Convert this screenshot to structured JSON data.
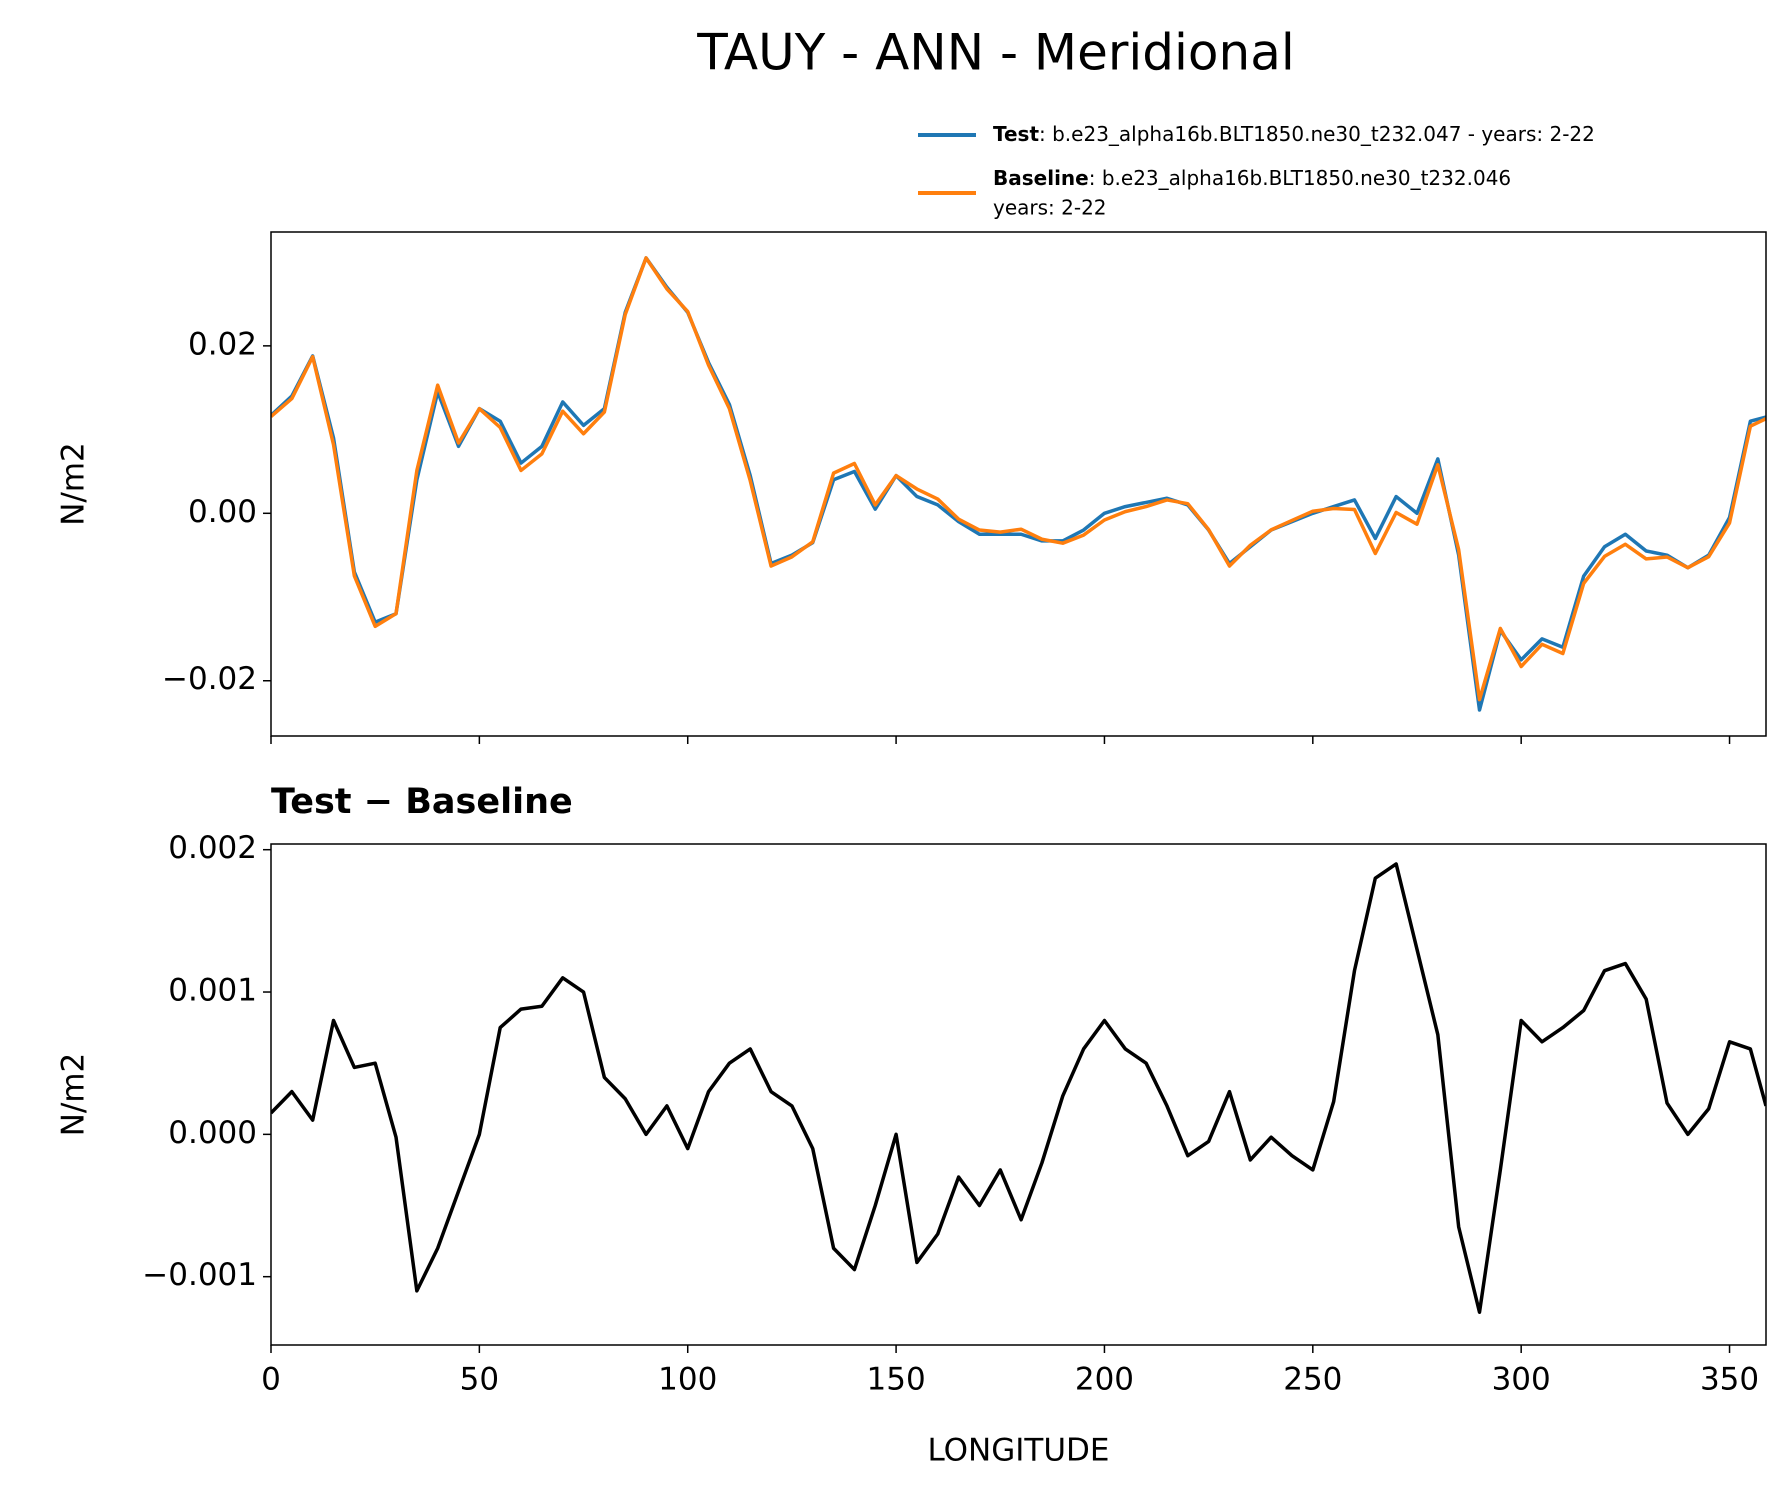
{
  "chart_data": [
    {
      "type": "line",
      "title": "TAUY - ANN - Meridional",
      "ylabel": "N/m2",
      "x": [
        0,
        5,
        10,
        15,
        20,
        25,
        30,
        35,
        40,
        45,
        50,
        55,
        60,
        65,
        70,
        75,
        80,
        85,
        90,
        95,
        100,
        105,
        110,
        115,
        120,
        125,
        130,
        135,
        140,
        145,
        150,
        155,
        160,
        165,
        170,
        175,
        180,
        185,
        190,
        195,
        200,
        205,
        210,
        215,
        220,
        225,
        230,
        235,
        240,
        245,
        250,
        255,
        260,
        265,
        270,
        275,
        280,
        285,
        290,
        295,
        300,
        305,
        310,
        315,
        320,
        325,
        330,
        335,
        340,
        345,
        350,
        355,
        358.75
      ],
      "series": [
        {
          "name": "Test",
          "description": [
            ": b.e23_alpha16b.BLT1850.ne30_t232.047 - years: 2-22"
          ],
          "color": "#1f77b4",
          "values": [
            0.0117,
            0.014,
            0.0188,
            0.009,
            -0.007,
            -0.013,
            -0.012,
            0.004,
            0.0145,
            0.008,
            0.0125,
            0.011,
            0.006,
            0.008,
            0.0133,
            0.0105,
            0.0125,
            0.024,
            0.0305,
            0.027,
            0.024,
            0.018,
            0.013,
            0.0045,
            -0.006,
            -0.005,
            -0.0035,
            0.004,
            0.005,
            0.0005,
            0.0045,
            0.002,
            0.001,
            -0.001,
            -0.0025,
            -0.0025,
            -0.0025,
            -0.0033,
            -0.0033,
            -0.002,
            0,
            0.0008,
            0.0013,
            0.0018,
            0.001,
            -0.002,
            -0.006,
            -0.004,
            -0.002,
            -0.001,
            0,
            0.0008,
            0.0016,
            -0.003,
            0.002,
            0,
            0.0065,
            -0.005,
            -0.0235,
            -0.014,
            -0.0175,
            -0.015,
            -0.016,
            -0.0075,
            -0.004,
            -0.0025,
            -0.0045,
            -0.005,
            -0.0065,
            -0.005,
            -0.0005,
            0.011,
            0.0115
          ]
        },
        {
          "name": "Baseline",
          "description": [
            ": b.e23_alpha16b.BLT1850.ne30_t232.046",
            "years: 2-22"
          ],
          "color": "#ff7f0e",
          "values": [
            0.01155,
            0.0137,
            0.0187,
            0.0082,
            -0.00747,
            -0.0135,
            -0.01198,
            0.0051,
            0.0153,
            0.0084,
            0.0125,
            0.01025,
            0.00512,
            0.0071,
            0.0122,
            0.0095,
            0.0121,
            0.02375,
            0.0305,
            0.0268,
            0.0241,
            0.0177,
            0.0125,
            0.0039,
            -0.0063,
            -0.0052,
            -0.0034,
            0.0048,
            0.00595,
            0.001,
            0.0045,
            0.0029,
            0.0017,
            -0.0007,
            -0.002,
            -0.00225,
            -0.0019,
            -0.0031,
            -0.00357,
            -0.0026,
            -0.0008,
            0.0002,
            0.0008,
            0.0016,
            0.00115,
            -0.00195,
            -0.0063,
            -0.00382,
            -0.00198,
            -0.00085,
            0.00025,
            0.00057,
            0.00045,
            -0.0048,
            0.0001,
            -0.0013,
            0.0058,
            -0.00435,
            -0.02225,
            -0.01375,
            -0.0183,
            -0.01565,
            -0.01675,
            -0.00837,
            -0.00515,
            -0.0037,
            -0.00545,
            -0.00522,
            -0.0065,
            -0.00518,
            -0.00115,
            0.0104,
            0.0113
          ]
        }
      ],
      "xlim": [
        0,
        358.75
      ],
      "xticks": [
        0,
        50,
        100,
        150,
        200,
        250,
        300,
        350
      ],
      "ylim": [
        -0.0266,
        0.0336
      ],
      "yticks": [
        {
          "value": -0.02,
          "label": "−0.02"
        },
        {
          "value": 0,
          "label": "0.00"
        },
        0.02
      ]
    },
    {
      "type": "line",
      "title": "Test − Baseline",
      "ylabel": "N/m2",
      "xlabel": "LONGITUDE",
      "x": [
        0,
        5,
        10,
        15,
        20,
        25,
        30,
        35,
        40,
        45,
        50,
        55,
        60,
        65,
        70,
        75,
        80,
        85,
        90,
        95,
        100,
        105,
        110,
        115,
        120,
        125,
        130,
        135,
        140,
        145,
        150,
        155,
        160,
        165,
        170,
        175,
        180,
        185,
        190,
        195,
        200,
        205,
        210,
        215,
        220,
        225,
        230,
        235,
        240,
        245,
        250,
        255,
        260,
        265,
        270,
        275,
        280,
        285,
        290,
        295,
        300,
        305,
        310,
        315,
        320,
        325,
        330,
        335,
        340,
        345,
        350,
        355,
        358.75
      ],
      "series": [
        {
          "color": "#000000",
          "values": [
            0.00015,
            0.0003,
            0.0001,
            0.0008,
            0.00047,
            0.0005,
            -2e-05,
            -0.0011,
            -0.0008,
            -0.0004,
            0,
            0.00075,
            0.00088,
            0.0009,
            0.0011,
            0.001,
            0.0004,
            0.00025,
            0,
            0.0002,
            -0.0001,
            0.0003,
            0.0005,
            0.0006,
            0.0003,
            0.0002,
            -0.0001,
            -0.0008,
            -0.00095,
            -0.0005,
            0,
            -0.0009,
            -0.0007,
            -0.0003,
            -0.0005,
            -0.00025,
            -0.0006,
            -0.0002,
            0.00027,
            0.0006,
            0.0008,
            0.0006,
            0.0005,
            0.0002,
            -0.00015,
            -5e-05,
            0.0003,
            -0.00018,
            -2e-05,
            -0.00015,
            -0.00025,
            0.00023,
            0.00115,
            0.0018,
            0.0019,
            0.0013,
            0.0007,
            -0.00065,
            -0.00125,
            -0.00025,
            0.0008,
            0.00065,
            0.00075,
            0.00087,
            0.00115,
            0.0012,
            0.00095,
            0.00022,
            0,
            0.00018,
            0.00065,
            0.0006,
            0.0002
          ]
        }
      ],
      "xlim": [
        0,
        358.75
      ],
      "xticks": [
        0,
        50,
        100,
        150,
        200,
        250,
        300,
        350
      ],
      "ylim": [
        -0.00148,
        0.00204
      ],
      "yticks": [
        {
          "value": -0.001,
          "label": "−0.001"
        },
        {
          "value": 0,
          "label": "0.000"
        },
        {
          "value": 0.001,
          "label": "0.001"
        },
        {
          "value": 0.002,
          "label": "0.002"
        }
      ]
    }
  ]
}
